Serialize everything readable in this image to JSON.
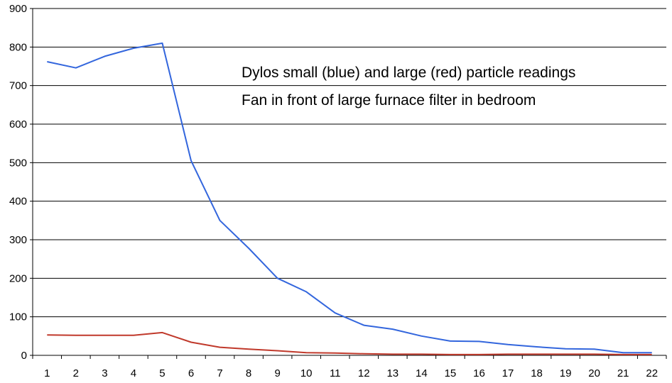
{
  "chart_data": {
    "type": "line",
    "x": [
      1,
      2,
      3,
      4,
      5,
      6,
      7,
      8,
      9,
      10,
      11,
      12,
      13,
      14,
      15,
      16,
      17,
      18,
      19,
      20,
      21,
      22
    ],
    "series": [
      {
        "color": "#3366dd",
        "values": [
          762,
          746,
          776,
          797,
          810,
          505,
          350,
          278,
          200,
          165,
          110,
          78,
          68,
          50,
          37,
          36,
          28,
          22,
          17,
          16,
          7,
          7
        ]
      },
      {
        "color": "#c0392b",
        "values": [
          53,
          52,
          52,
          52,
          59,
          34,
          21,
          16,
          12,
          7,
          6,
          4,
          3,
          3,
          2,
          2,
          3,
          3,
          3,
          3,
          2,
          2
        ]
      }
    ],
    "annotations": [
      "Dylos small (blue) and large (red) particle readings",
      "Fan in front of large furnace filter in bedroom"
    ],
    "ylim": [
      0,
      900
    ],
    "yticks": [
      0,
      100,
      200,
      300,
      400,
      500,
      600,
      700,
      800,
      900
    ],
    "grid": "horizontal",
    "title": "",
    "xlabel": "",
    "ylabel": ""
  }
}
